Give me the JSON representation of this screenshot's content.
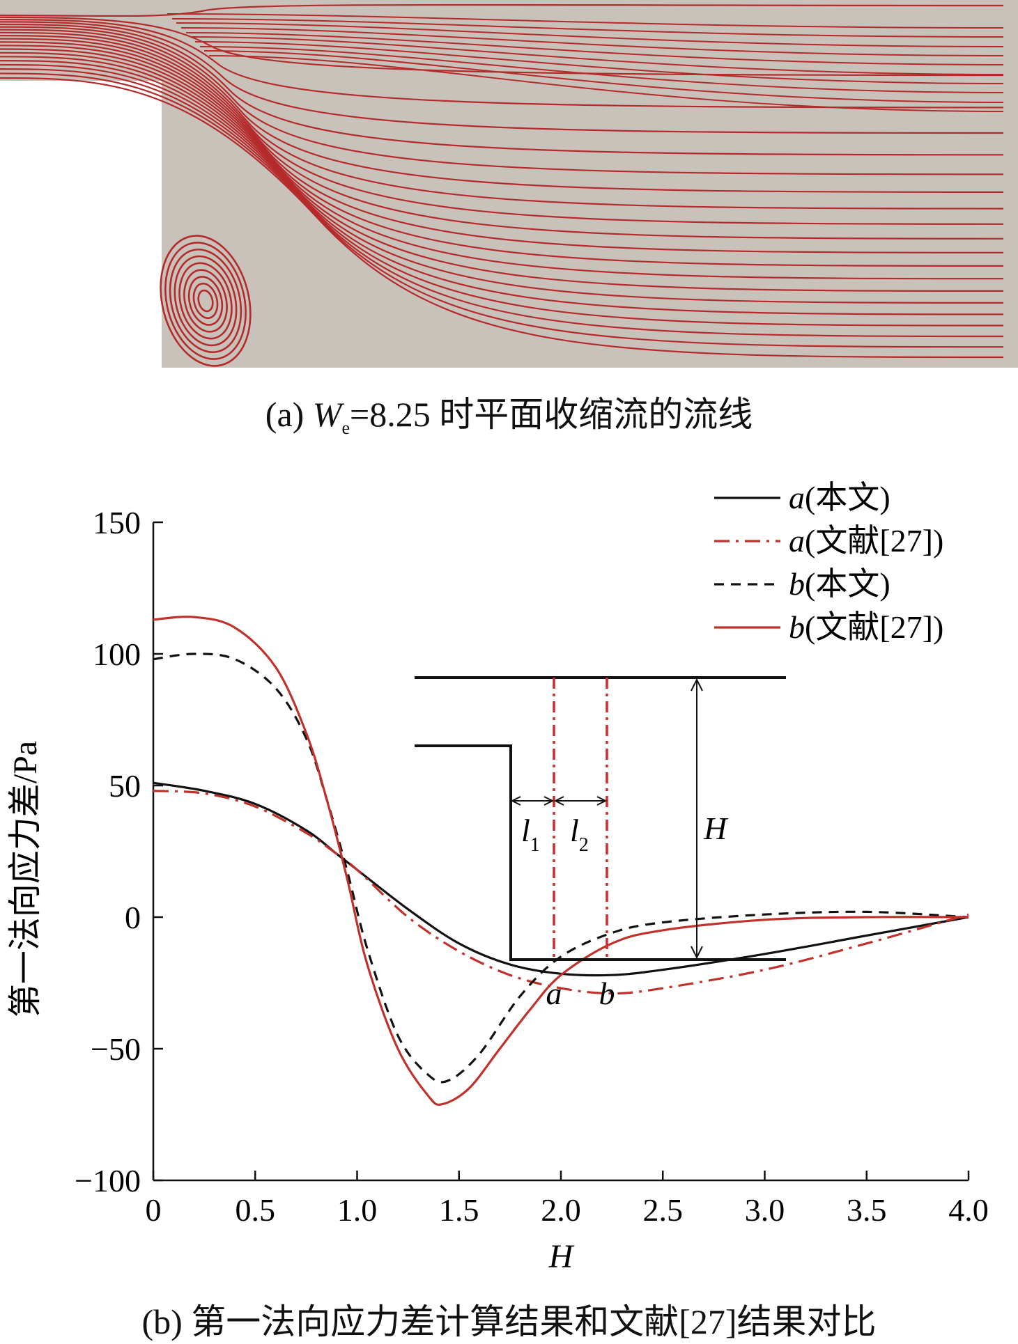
{
  "panel_a": {
    "caption_prefix": "(a) ",
    "caption_symbol": "W",
    "caption_subscript": "e",
    "caption_suffix": "=8.25 时平面收缩流的流线",
    "background_color": "#c8c2bb",
    "streamline_color": "#b52a2a"
  },
  "panel_b": {
    "caption": "(b) 第一法向应力差计算结果和文献[27]结果对比"
  },
  "chart_data": {
    "type": "line",
    "xlabel": "H",
    "ylabel": "第一法向应力差/Pa",
    "xlim": [
      0,
      4.0
    ],
    "ylim": [
      -100,
      150
    ],
    "xticks": [
      "0",
      "0.5",
      "1.0",
      "1.5",
      "2.0",
      "2.5",
      "3.0",
      "3.5",
      "4.0"
    ],
    "yticks": [
      "150",
      "100",
      "50",
      "0",
      "−50",
      "−100"
    ],
    "grid": false,
    "legend_position": "top-right",
    "series": [
      {
        "name": "a(本文)",
        "label_var": "a",
        "label_text": "(本文)",
        "color": "#111111",
        "dash": "solid",
        "x": [
          0,
          0.25,
          0.5,
          0.75,
          0.9,
          1.0,
          1.25,
          1.5,
          1.75,
          2.0,
          2.25,
          2.5,
          3.0,
          3.5,
          4.0
        ],
        "y": [
          51,
          48,
          43,
          33,
          24,
          18,
          3,
          -10,
          -18,
          -21.5,
          -22,
          -20,
          -14,
          -7,
          0
        ]
      },
      {
        "name": "a(文献[27])",
        "label_var": "a",
        "label_text": "(文献[27])",
        "color": "#c0312b",
        "dash": "dashdot",
        "x": [
          0,
          0.25,
          0.5,
          0.75,
          0.9,
          1.0,
          1.25,
          1.5,
          1.75,
          2.0,
          2.25,
          2.5,
          3.0,
          3.5,
          4.0
        ],
        "y": [
          48,
          47,
          42,
          32,
          24,
          18,
          0,
          -13,
          -22,
          -27,
          -29,
          -27,
          -20,
          -10,
          1
        ]
      },
      {
        "name": "b(本文)",
        "label_var": "b",
        "label_text": "(本文)",
        "color": "#111111",
        "dash": "dashed",
        "x": [
          0,
          0.2,
          0.4,
          0.6,
          0.75,
          0.85,
          0.95,
          1.05,
          1.2,
          1.35,
          1.45,
          1.6,
          1.8,
          2.0,
          2.25,
          2.5,
          3.0,
          3.5,
          4.0
        ],
        "y": [
          98,
          100,
          98,
          87,
          68,
          45,
          18,
          -12,
          -45,
          -60,
          -62,
          -52,
          -30,
          -15,
          -6,
          -2,
          1,
          2,
          0
        ]
      },
      {
        "name": "b(文献[27])",
        "label_var": "b",
        "label_text": "(文献[27])",
        "color": "#c0312b",
        "dash": "solid",
        "x": [
          0,
          0.2,
          0.4,
          0.6,
          0.75,
          0.85,
          0.95,
          1.05,
          1.2,
          1.35,
          1.42,
          1.55,
          1.7,
          1.85,
          2.0,
          2.25,
          2.5,
          3.0,
          3.5,
          4.0
        ],
        "y": [
          113,
          114,
          110,
          95,
          70,
          45,
          15,
          -18,
          -50,
          -68,
          -71,
          -65,
          -50,
          -35,
          -22,
          -10,
          -5,
          -1,
          0,
          0
        ]
      }
    ],
    "inset": {
      "label_H": "H",
      "label_l1": "l",
      "label_l1_sub": "1",
      "label_l2": "l",
      "label_l2_sub": "2",
      "label_a": "a",
      "label_b": "b"
    }
  }
}
